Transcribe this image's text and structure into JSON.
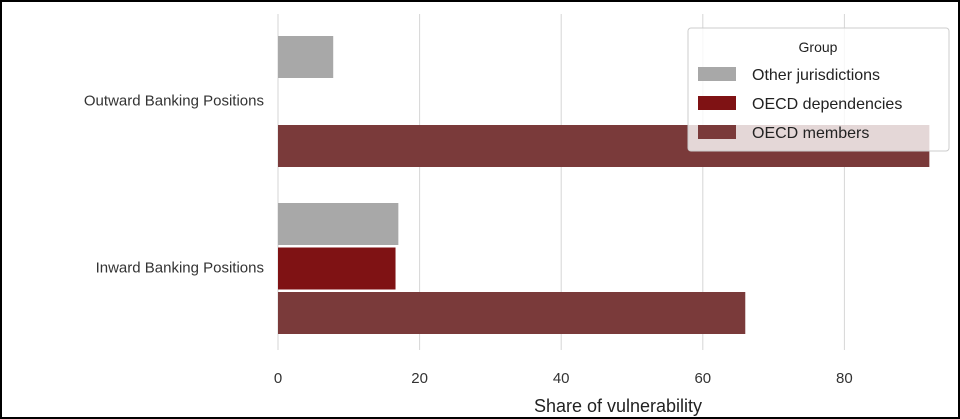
{
  "chart_data": {
    "type": "bar",
    "orientation": "horizontal",
    "categories": [
      "Outward Banking Positions",
      "Inward Banking Positions"
    ],
    "series": [
      {
        "name": "Other jurisdictions",
        "color": "#a8a8a8",
        "values": [
          7.8,
          17.0
        ]
      },
      {
        "name": "OECD dependencies",
        "color": "#7f1214",
        "values": [
          0,
          16.6
        ]
      },
      {
        "name": "OECD members",
        "color": "#7a3a3a",
        "values": [
          92,
          66
        ]
      }
    ],
    "xlabel": "Share of vulnerability",
    "ylabel": "",
    "xlim": [
      0,
      92
    ],
    "xticks": [
      "0",
      "20",
      "40",
      "60",
      "80"
    ],
    "grid": "vertical",
    "legend": {
      "title": "Group",
      "placement": "top-right"
    }
  }
}
